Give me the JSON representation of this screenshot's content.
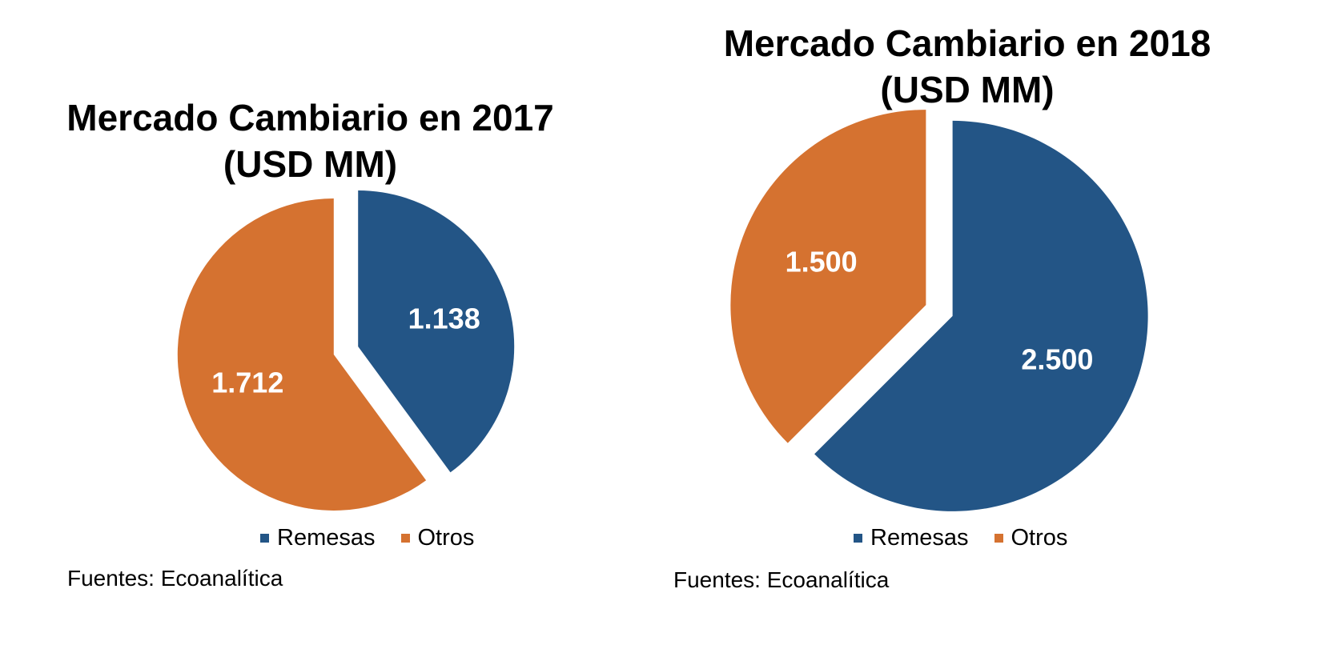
{
  "chart_data": [
    {
      "type": "pie",
      "title_lines": [
        "Mercado Cambiario en 2017",
        "(USD MM)"
      ],
      "categories": [
        "Remesas",
        "Otros"
      ],
      "values": [
        1138,
        1712
      ],
      "value_labels": [
        "1.138",
        "1.712"
      ],
      "colors": [
        "#235586",
        "#d57230"
      ],
      "exploded": true,
      "legend": [
        "Remesas",
        "Otros"
      ],
      "legend_position": "bottom",
      "source": "Fuentes: Ecoanalítica"
    },
    {
      "type": "pie",
      "title_lines": [
        "Mercado Cambiario en 2018",
        "(USD MM)"
      ],
      "categories": [
        "Remesas",
        "Otros"
      ],
      "values": [
        2500,
        1500
      ],
      "value_labels": [
        "2.500",
        "1.500"
      ],
      "colors": [
        "#235586",
        "#d57230"
      ],
      "exploded": true,
      "legend": [
        "Remesas",
        "Otros"
      ],
      "legend_position": "bottom",
      "source": "Fuentes: Ecoanalítica"
    }
  ]
}
